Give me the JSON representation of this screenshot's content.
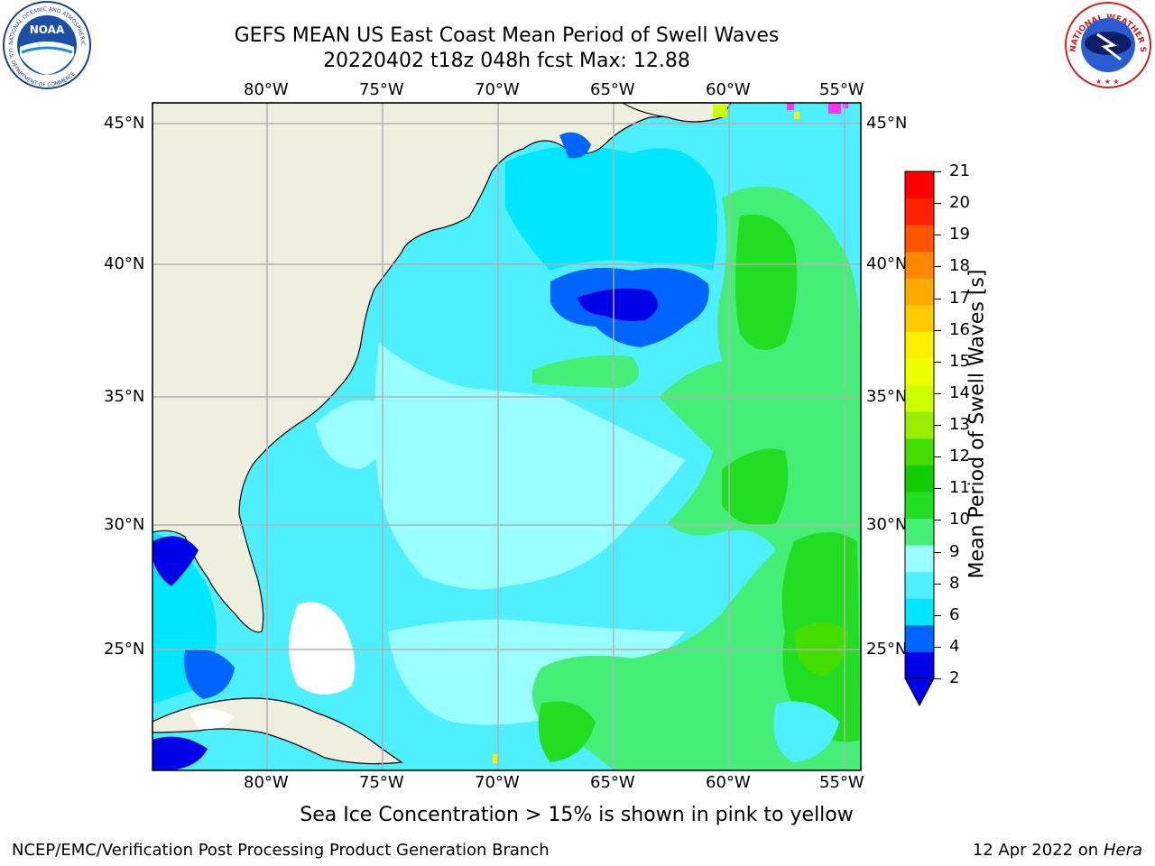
{
  "header": {
    "title_line1": "GEFS MEAN US East Coast Mean Period of Swell Waves",
    "title_line2": "20220402 t18z 048h fcst   Max: 12.88"
  },
  "logos": {
    "left_text": "NOAA",
    "left_ring_top": "NATIONAL OCEANIC AND ATMOSPHERIC ADMINISTRATION",
    "left_ring_bottom": "U.S. DEPARTMENT OF COMMERCE",
    "right_ring": "NATIONAL WEATHER SERVICE"
  },
  "map": {
    "lon_labels": [
      "80°W",
      "75°W",
      "70°W",
      "65°W",
      "60°W",
      "55°W"
    ],
    "lat_labels": [
      "45°N",
      "40°N",
      "35°N",
      "30°N",
      "25°N"
    ],
    "colors": {
      "land": "#efefdf",
      "grid": "#b0b0b0",
      "coast": "#000000",
      "ice_pink": "#ff33ff"
    }
  },
  "colorbar": {
    "label": "Mean Period of Swell Waves [s]",
    "ticks": [
      "21",
      "20",
      "19",
      "18",
      "17",
      "16",
      "15",
      "14",
      "13",
      "12",
      "11",
      "10",
      "9",
      "8",
      "6",
      "4",
      "2"
    ],
    "colors": [
      "#0000e6",
      "#0064ff",
      "#00e6ff",
      "#4ef0ff",
      "#99ffff",
      "#44ee77",
      "#22dd22",
      "#11cc00",
      "#44dd00",
      "#99ee00",
      "#ccff00",
      "#eeff00",
      "#ffee00",
      "#ffcc00",
      "#ffaa00",
      "#ff8800",
      "#ff5500",
      "#ff2200",
      "#ff0000"
    ]
  },
  "caption": "Sea Ice Concentration > 15% is shown in pink to yellow",
  "footer": {
    "left": "NCEP/EMC/Verification Post Processing Product Generation Branch",
    "right_date": "12 Apr 2022 on ",
    "right_host": "Hera"
  }
}
